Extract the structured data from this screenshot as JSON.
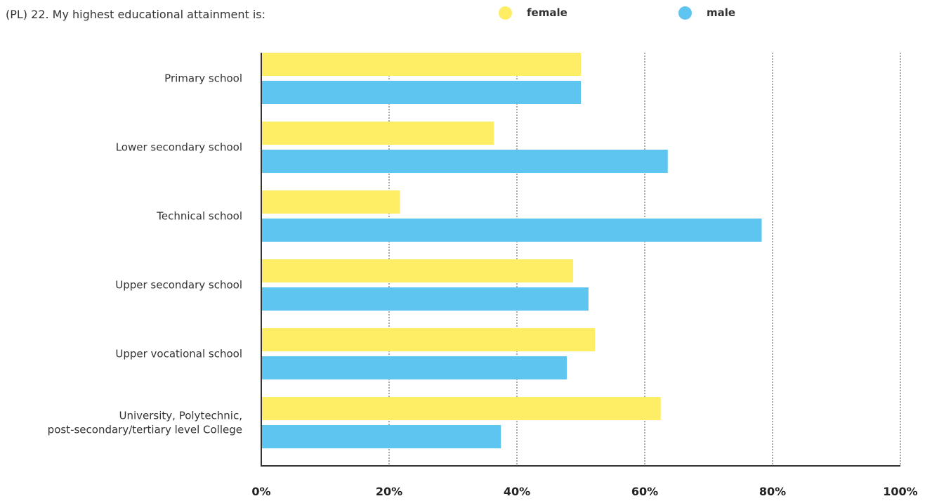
{
  "title": "(PL) 22. My highest educational attainment is:",
  "legend": [
    {
      "name": "female",
      "color": "#fdee65"
    },
    {
      "name": "male",
      "color": "#5dc5ef"
    }
  ],
  "chart_data": {
    "type": "bar",
    "orientation": "horizontal",
    "title": "(PL) 22. My highest educational attainment is:",
    "xlabel": "",
    "ylabel": "",
    "xlim": [
      0,
      100
    ],
    "x_ticks": [
      "0%",
      "20%",
      "40%",
      "60%",
      "80%",
      "100%"
    ],
    "grid": "vertical dashed",
    "legend_position": "top",
    "categories": [
      "Primary school",
      "Lower secondary school",
      "Technical school",
      "Upper secondary school",
      "Upper vocational school",
      "University, Polytechnic,\npost-secondary/tertiary level College"
    ],
    "series": [
      {
        "name": "female",
        "color": "#fdee65",
        "values": [
          50,
          36.4,
          21.7,
          48.8,
          52.2,
          62.5
        ]
      },
      {
        "name": "male",
        "color": "#5dc5ef",
        "values": [
          50,
          63.6,
          78.3,
          51.2,
          47.8,
          37.5
        ]
      }
    ]
  }
}
